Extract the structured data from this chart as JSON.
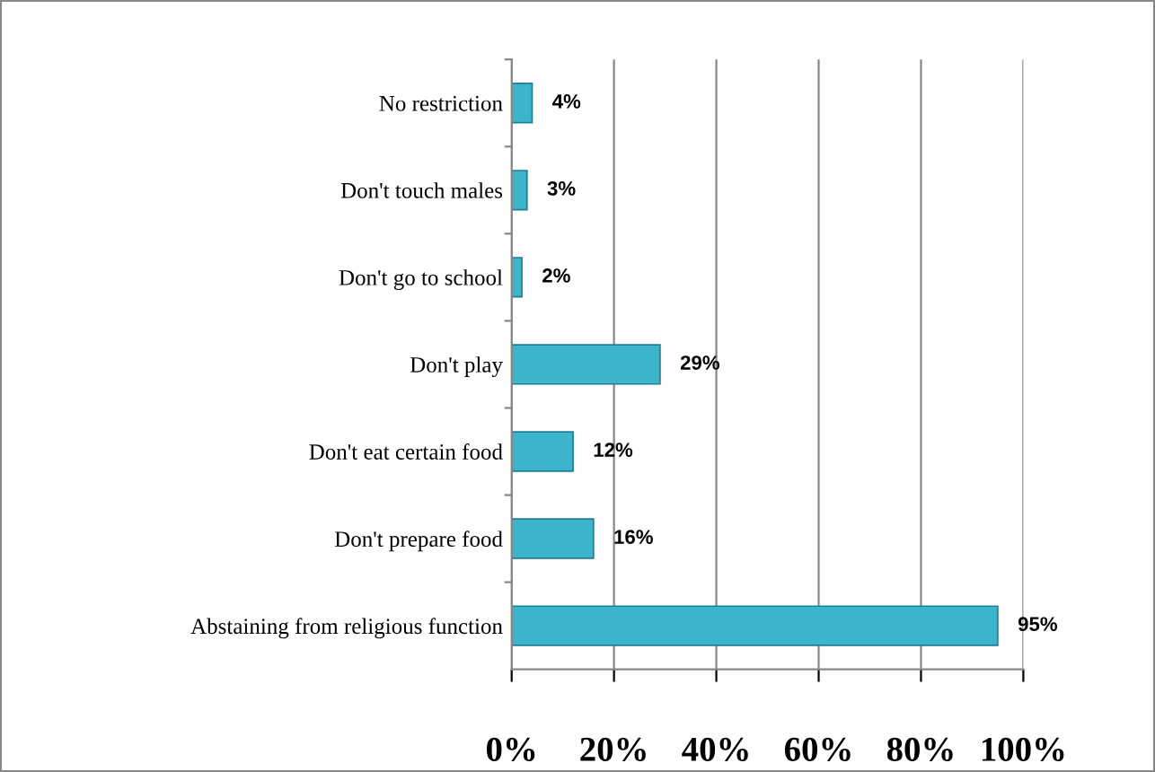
{
  "chart_data": {
    "type": "bar",
    "orientation": "horizontal",
    "categories": [
      "No restriction",
      "Don't touch males",
      "Don't go to school",
      "Don't play",
      "Don't eat certain food",
      "Don't prepare food",
      "Abstaining from religious function"
    ],
    "values": [
      4,
      3,
      2,
      29,
      12,
      16,
      95
    ],
    "value_labels": [
      "4%",
      "3%",
      "2%",
      "29%",
      "12%",
      "16%",
      "95%"
    ],
    "color": "#3cb4cc",
    "xlim": [
      0,
      100
    ],
    "xticks": [
      {
        "value": 0,
        "label": "0%"
      },
      {
        "value": 20,
        "label": "20%"
      },
      {
        "value": 40,
        "label": "40%"
      },
      {
        "value": 60,
        "label": "60%"
      },
      {
        "value": 80,
        "label": "80%"
      },
      {
        "value": 100,
        "label": "100%"
      }
    ],
    "grid": "x",
    "legend": false
  }
}
